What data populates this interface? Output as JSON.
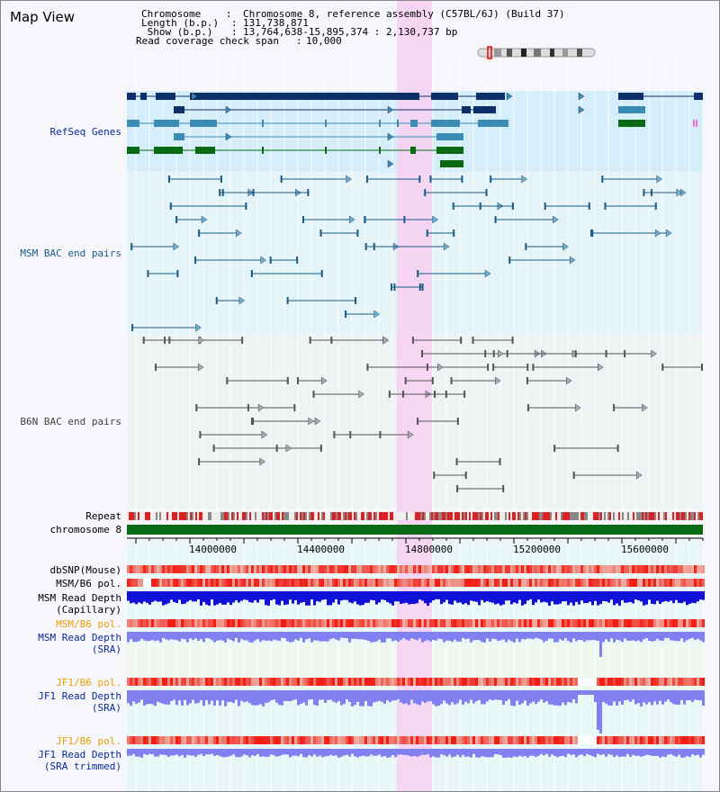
{
  "window": {
    "title": "Map View"
  },
  "info": {
    "chromosome_label": "Chromosome    ",
    "chromosome_value": "Chromosome 8, reference assembly (C57BL/6J) (Build 37)",
    "length_label": "Length (b.p.)",
    "length_value": "131,738,871",
    "show_label": " Show (b.p.)",
    "show_value": "13,764,638-15,895,374 : 2,130,737 bp",
    "coverage_label": "Read coverage check span",
    "coverage_value": "10,000"
  },
  "tracks": {
    "refseq": "RefSeq Genes",
    "msm_bac": "MSM BAC end pairs",
    "b6n_bac": "B6N BAC end pairs",
    "repeat": "Repeat",
    "chromosome": "chromosome 8",
    "dbsnp": "dbSNP(Mouse)",
    "msm_b6_pol_1": "MSM/B6 pol.",
    "msm_read_depth_cap": "MSM Read Depth\n(Capillary)",
    "msm_b6_pol_2": "MSM/B6 pol.",
    "msm_read_depth_sra": "MSM Read Depth\n(SRA)",
    "jf1_b6_pol_1": "JF1/B6 pol.",
    "jf1_read_depth_sra": "JF1 Read Depth\n(SRA)",
    "jf1_b6_pol_2": "JF1/B6 pol.",
    "jf1_read_depth_trim": "JF1 Read Depth\n(SRA trimmed)"
  },
  "ruler": {
    "ticks": [
      "14000000",
      "14400000",
      "14800000",
      "15200000",
      "15600000"
    ]
  },
  "colors": {
    "refseq_dark": "#0d2f6a",
    "refseq_mid": "#3b8cb5",
    "refseq_green": "#0a6a14",
    "highlight": "#f7d0f2",
    "msm_color": "#1a5c86",
    "b6n_color": "#555555",
    "pol_red": "#e02020",
    "depth_blue": "#1010d8",
    "depth_light": "#8080f0",
    "orange_label": "#e8a000",
    "navy_label": "#0a2a9a"
  }
}
